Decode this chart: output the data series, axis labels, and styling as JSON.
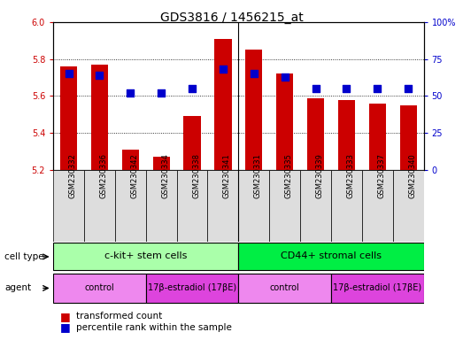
{
  "title": "GDS3816 / 1456215_at",
  "samples": [
    "GSM230332",
    "GSM230336",
    "GSM230342",
    "GSM230334",
    "GSM230338",
    "GSM230341",
    "GSM230331",
    "GSM230335",
    "GSM230339",
    "GSM230333",
    "GSM230337",
    "GSM230340"
  ],
  "transformed_count": [
    5.76,
    5.77,
    5.31,
    5.27,
    5.49,
    5.91,
    5.85,
    5.72,
    5.59,
    5.58,
    5.56,
    5.55
  ],
  "percentile_rank": [
    65,
    64,
    52,
    52,
    55,
    68,
    65,
    63,
    55,
    55,
    55,
    55
  ],
  "ymin": 5.2,
  "ymax": 6.0,
  "y_ticks_left": [
    5.2,
    5.4,
    5.6,
    5.8,
    6.0
  ],
  "y_ticks_right": [
    0,
    25,
    50,
    75,
    100
  ],
  "cell_type_groups": [
    {
      "label": "c-kit+ stem cells",
      "start": 0,
      "end": 5,
      "color": "#aaffaa"
    },
    {
      "label": "CD44+ stromal cells",
      "start": 6,
      "end": 11,
      "color": "#00ee44"
    }
  ],
  "agent_groups": [
    {
      "label": "control",
      "start": 0,
      "end": 2,
      "color": "#ee88ee"
    },
    {
      "label": "17β-estradiol (17βE)",
      "start": 3,
      "end": 5,
      "color": "#dd44dd"
    },
    {
      "label": "control",
      "start": 6,
      "end": 8,
      "color": "#ee88ee"
    },
    {
      "label": "17β-estradiol (17βE)",
      "start": 9,
      "end": 11,
      "color": "#dd44dd"
    }
  ],
  "bar_color": "#cc0000",
  "dot_color": "#0000cc",
  "bar_width": 0.55,
  "dot_size": 30,
  "background_color": "#ffffff",
  "label_color_left": "#cc0000",
  "label_color_right": "#0000cc",
  "tick_label_bg": "#dddddd",
  "sep_color": "#888888"
}
